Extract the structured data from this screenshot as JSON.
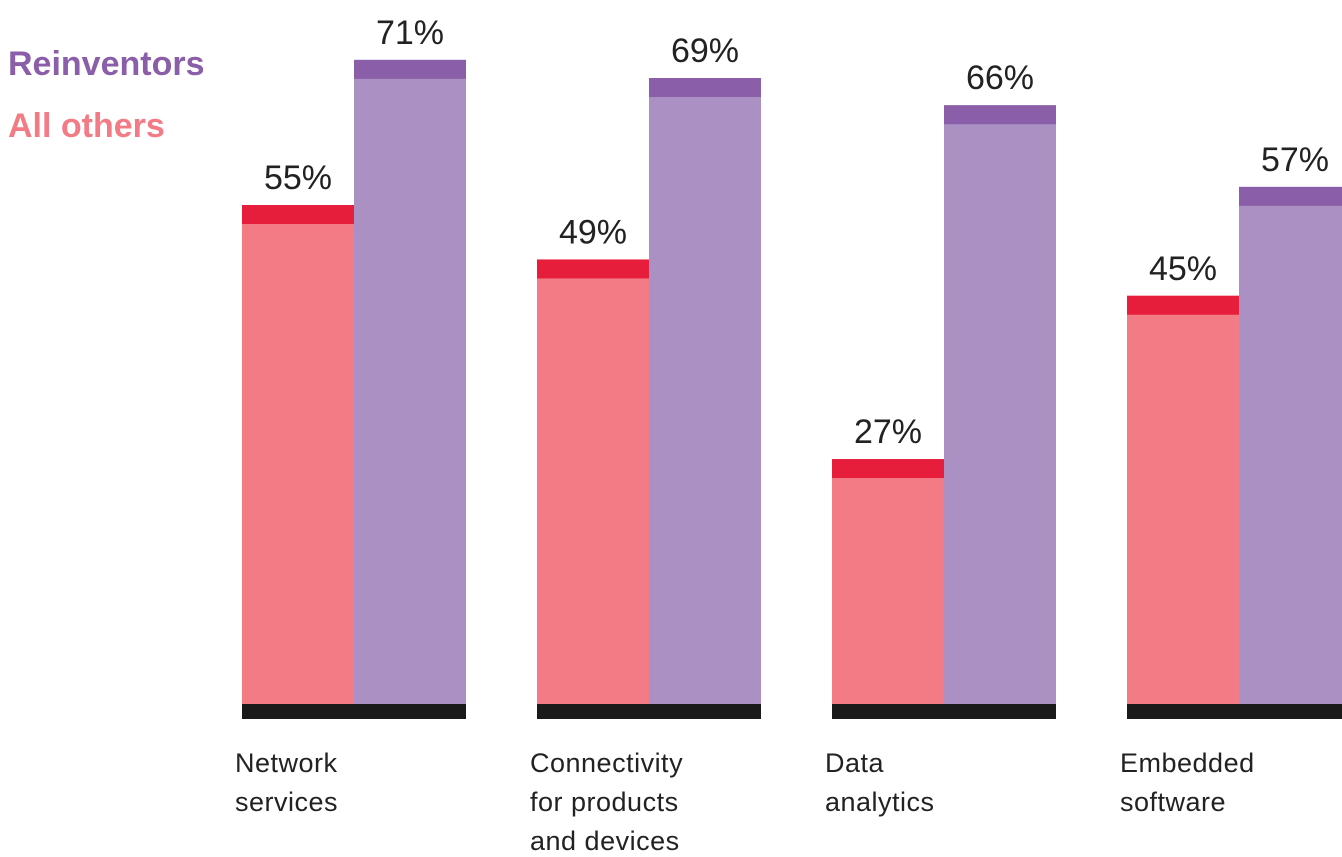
{
  "chart_data": {
    "type": "bar",
    "categories": [
      "Network services",
      "Connectivity for products and devices",
      "Data analytics",
      "Embedded software"
    ],
    "series": [
      {
        "name": "All others",
        "color": "#f27b85",
        "accent": "#e61e3c",
        "values": [
          55,
          49,
          27,
          45
        ],
        "value_labels": [
          "55%",
          "49%",
          "27%",
          "45%"
        ]
      },
      {
        "name": "Reinventors",
        "color": "#ab90c3",
        "accent": "#8a5ea8",
        "values": [
          71,
          69,
          66,
          57
        ],
        "value_labels": [
          "71%",
          "69%",
          "66%",
          "57%"
        ]
      }
    ],
    "ylim": [
      0,
      77.6
    ],
    "legend": "top-left"
  }
}
